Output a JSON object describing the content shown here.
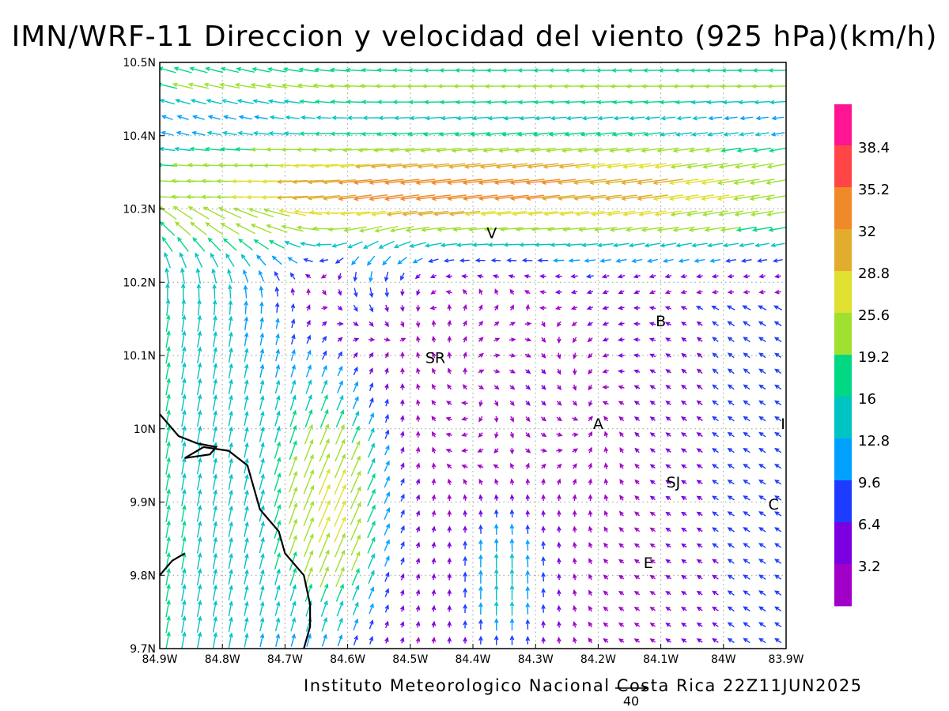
{
  "header": {
    "title": "IMN/WRF-11 Direccion y velocidad del viento (925 hPa)(km/h)"
  },
  "footer": {
    "credit": "Instituto Meteorologico Nacional Costa Rica 22Z11JUN2025"
  },
  "map": {
    "lon_range": [
      -84.9,
      -83.9
    ],
    "lat_range": [
      9.7,
      10.5
    ],
    "x_ticks": [
      "84.9W",
      "84.8W",
      "84.7W",
      "84.6W",
      "84.5W",
      "84.4W",
      "84.3W",
      "84.2W",
      "84.1W",
      "84W",
      "83.9W"
    ],
    "y_ticks": [
      "10.5N",
      "10.4N",
      "10.3N",
      "10.2N",
      "10.1N",
      "10N",
      "9.9N",
      "9.8N",
      "9.7N"
    ],
    "grid": true,
    "cities": [
      {
        "label": "V",
        "lon": -84.37,
        "lat": 10.26
      },
      {
        "label": "SR",
        "lon": -84.46,
        "lat": 10.09
      },
      {
        "label": "B",
        "lon": -84.1,
        "lat": 10.14
      },
      {
        "label": "A",
        "lon": -84.2,
        "lat": 10.0
      },
      {
        "label": "SJ",
        "lon": -84.08,
        "lat": 9.92
      },
      {
        "label": "C",
        "lon": -83.92,
        "lat": 9.89
      },
      {
        "label": "E",
        "lon": -84.12,
        "lat": 9.81
      },
      {
        "label": "I",
        "lon": -83.905,
        "lat": 10.0
      }
    ],
    "coastline": [
      [
        -84.9,
        10.02
      ],
      [
        -84.87,
        9.99
      ],
      [
        -84.84,
        9.98
      ],
      [
        -84.81,
        9.975
      ],
      [
        -84.82,
        9.965
      ],
      [
        -84.86,
        9.96
      ],
      [
        -84.83,
        9.975
      ],
      [
        -84.79,
        9.97
      ],
      [
        -84.76,
        9.95
      ],
      [
        -84.74,
        9.89
      ],
      [
        -84.71,
        9.86
      ],
      [
        -84.7,
        9.83
      ],
      [
        -84.67,
        9.8
      ],
      [
        -84.66,
        9.76
      ],
      [
        -84.66,
        9.73
      ],
      [
        -84.67,
        9.7
      ]
    ],
    "coastline2": [
      [
        -84.9,
        9.8
      ],
      [
        -84.88,
        9.82
      ],
      [
        -84.86,
        9.83
      ]
    ],
    "colors": {
      "frame": "#000000",
      "grid": "#9a9a9a",
      "coast": "#000000"
    }
  },
  "colorbar": {
    "labels": [
      "38.4",
      "35.2",
      "32",
      "28.8",
      "25.6",
      "19.2",
      "16",
      "12.8",
      "9.6",
      "6.4",
      "3.2"
    ],
    "colors": [
      "#ff1493",
      "#ff4545",
      "#f08a28",
      "#e2ac2e",
      "#e0e030",
      "#a0e030",
      "#00d884",
      "#00c4c4",
      "#00a0ff",
      "#1e3cff",
      "#7a00e0",
      "#a000c8"
    ]
  },
  "reference_vector": {
    "label": "40"
  }
}
